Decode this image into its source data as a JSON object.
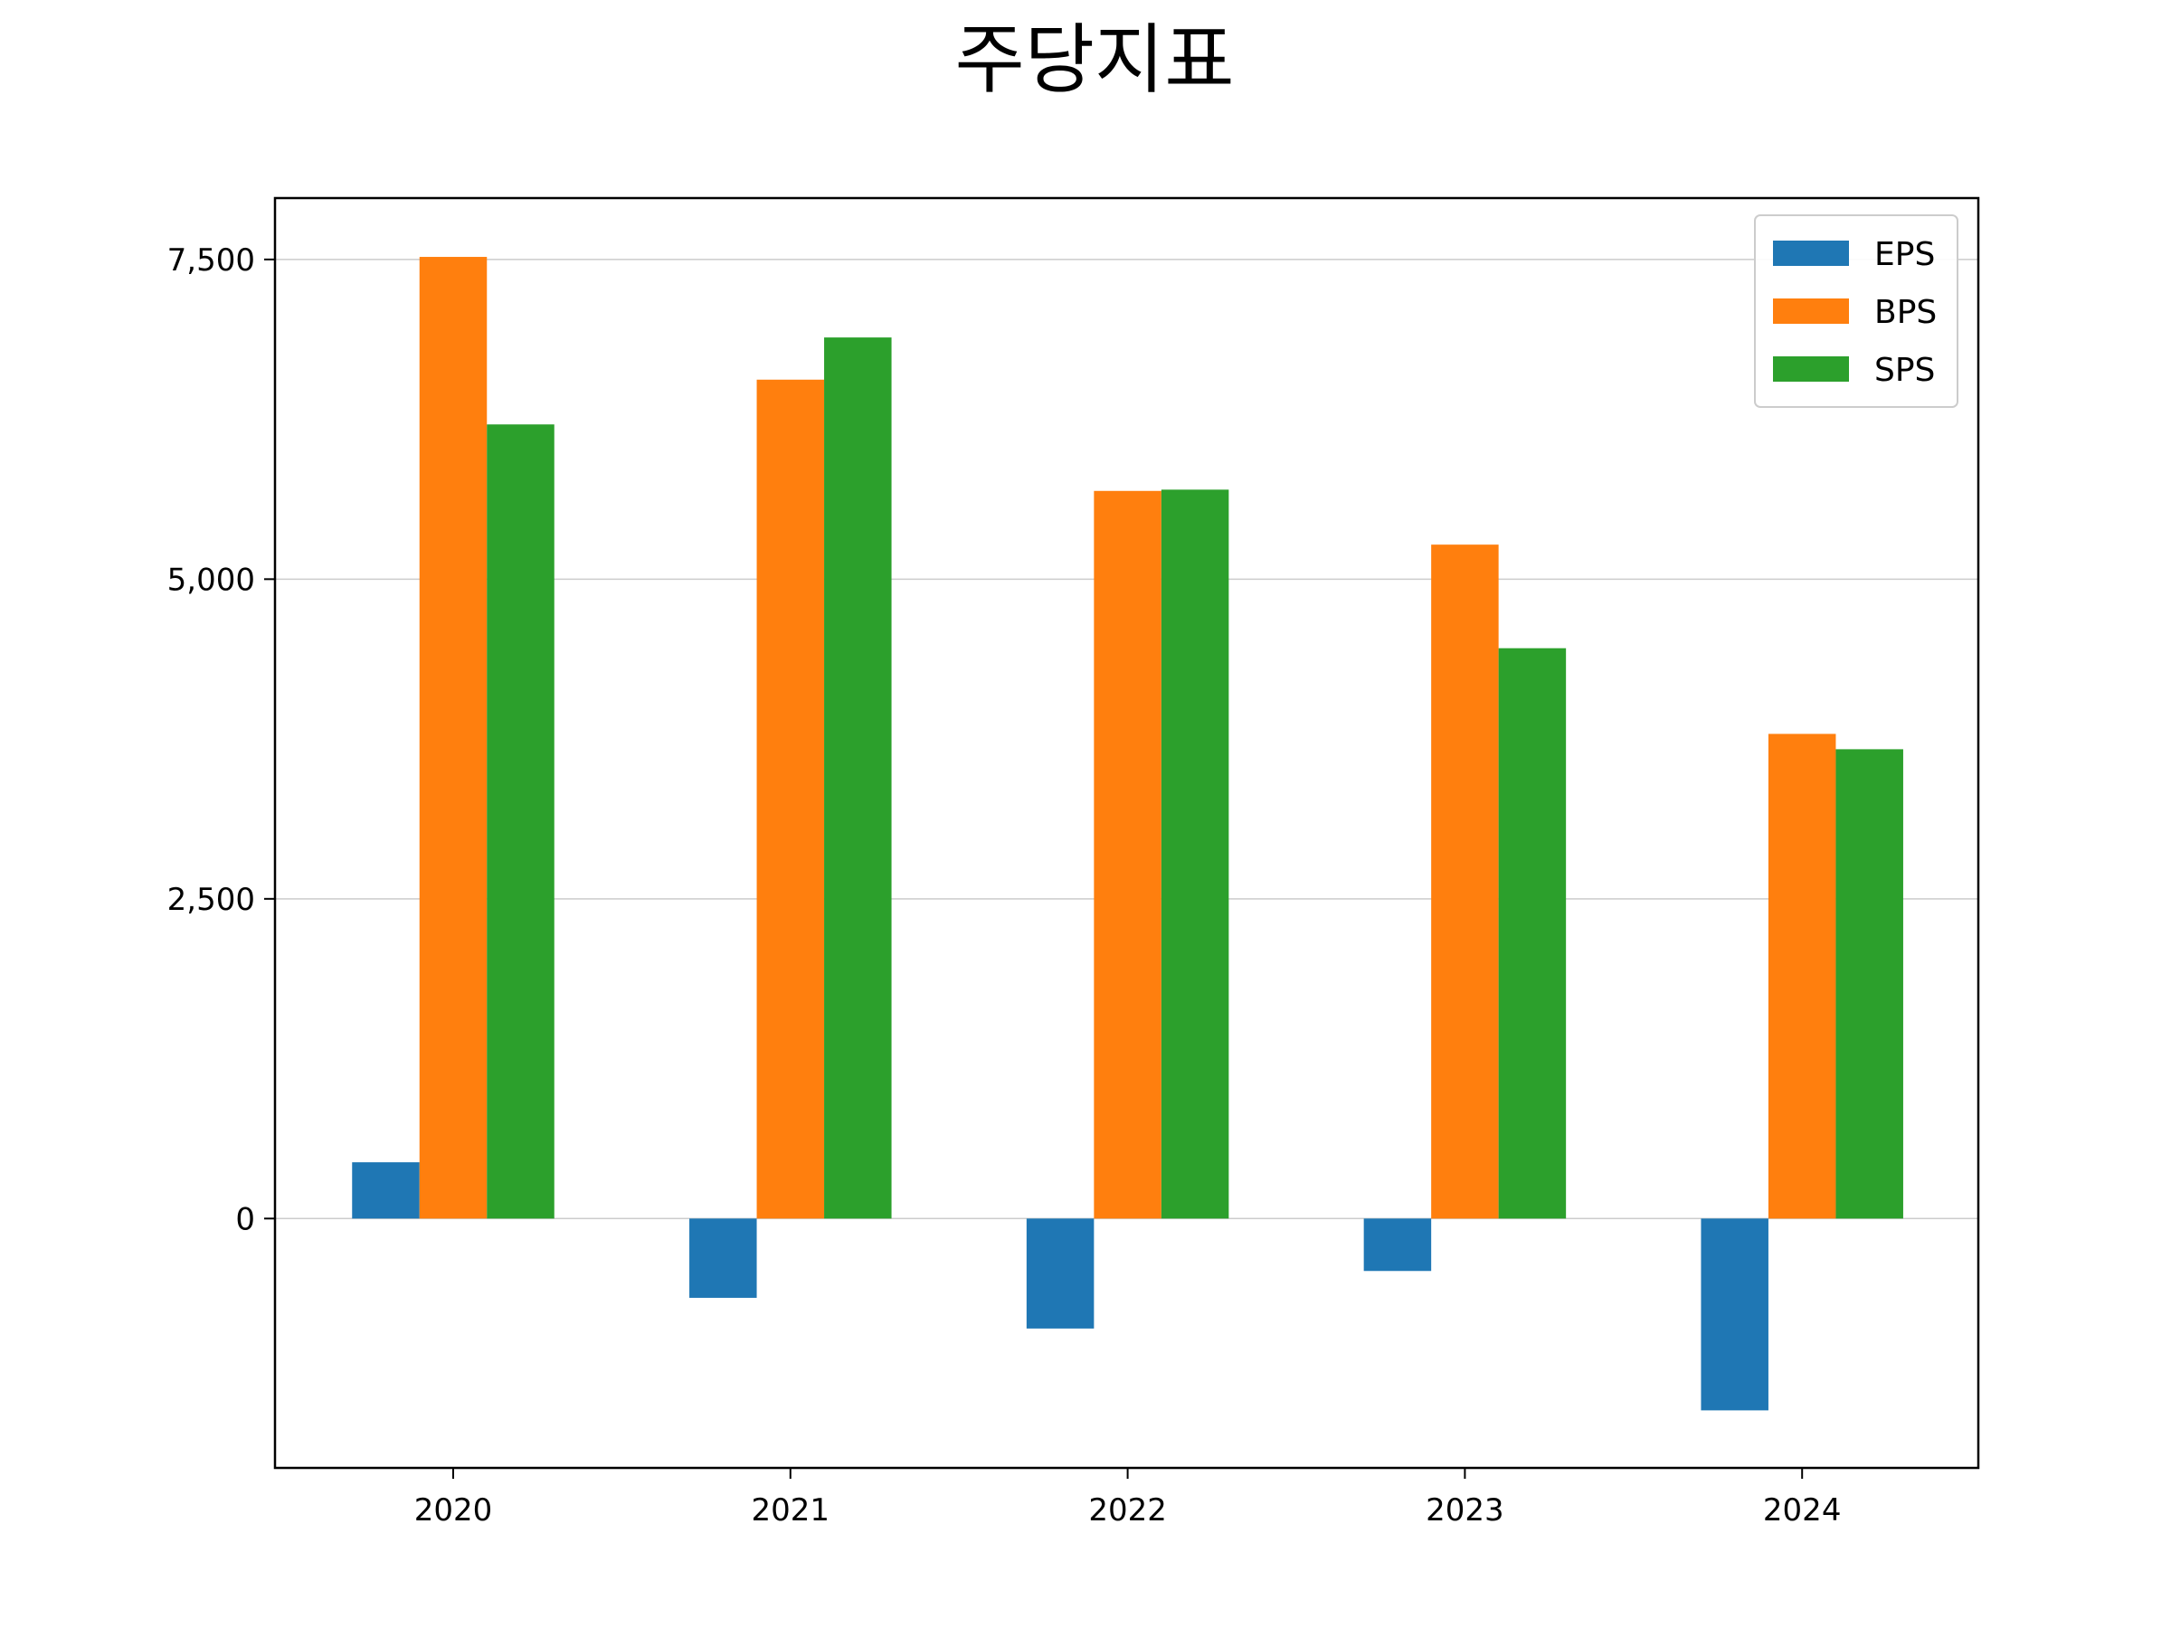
{
  "chart_data": {
    "type": "bar",
    "title": "주당지표",
    "xlabel": "",
    "ylabel": "",
    "categories": [
      "2020",
      "2021",
      "2022",
      "2023",
      "2024"
    ],
    "series": [
      {
        "name": "EPS",
        "color": "#1f77b4",
        "values": [
          440,
          -620,
          -860,
          -410,
          -1500
        ]
      },
      {
        "name": "BPS",
        "color": "#ff7f0e",
        "values": [
          7520,
          6560,
          5690,
          5270,
          3790
        ]
      },
      {
        "name": "SPS",
        "color": "#2ca02c",
        "values": [
          6210,
          6890,
          5700,
          4460,
          3670
        ]
      }
    ],
    "ylim": [
      -1950,
      7980
    ],
    "yticks": [
      0,
      2500,
      5000,
      7500
    ],
    "ytick_labels": [
      "0",
      "2,500",
      "5,000",
      "7,500"
    ],
    "grid": {
      "y": true,
      "x": false
    },
    "legend": {
      "position": "top-right"
    }
  }
}
